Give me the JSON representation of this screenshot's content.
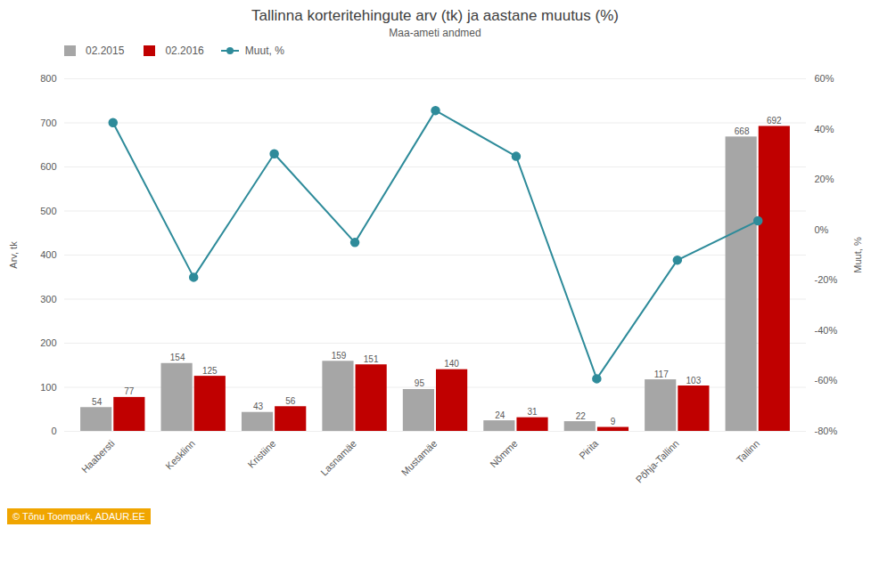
{
  "chart_data": {
    "type": "bar",
    "title": "Tallinna korteritehingute arv (tk) ja aastane muutus (%)",
    "subtitle": "Maa-ameti andmed",
    "ylabel": "Arv, tk",
    "y2label": "Muut, %",
    "categories": [
      "Haabersti",
      "Kesklinn",
      "Kristiine",
      "Lasnamäe",
      "Mustamäe",
      "Nõmme",
      "Pirita",
      "Põhja-Tallinn",
      "Tallinn"
    ],
    "series": [
      {
        "name": "02.2015",
        "type": "bar",
        "color": "#a6a6a6",
        "data_labels": true,
        "values": [
          54,
          154,
          43,
          159,
          95,
          24,
          22,
          117,
          668
        ]
      },
      {
        "name": "02.2016",
        "type": "bar",
        "color": "#c00000",
        "data_labels": true,
        "values": [
          77,
          125,
          56,
          151,
          140,
          31,
          9,
          103,
          692
        ]
      },
      {
        "name": "Muut, %",
        "type": "line",
        "axis": "y2",
        "color": "#2e8b9a",
        "marker": "circle",
        "values": [
          42.6,
          -18.8,
          30.2,
          -5.0,
          47.4,
          29.2,
          -59.1,
          -12.0,
          3.6
        ]
      }
    ],
    "ylim": [
      0,
      800
    ],
    "yticks": [
      0,
      100,
      200,
      300,
      400,
      500,
      600,
      700,
      800
    ],
    "y2lim": [
      -80,
      60
    ],
    "y2ticks": [
      {
        "value": -80,
        "label": "-80%"
      },
      {
        "value": -60,
        "label": "-60%"
      },
      {
        "value": -40,
        "label": "-40%"
      },
      {
        "value": -20,
        "label": "-20%"
      },
      {
        "value": 0,
        "label": "0%"
      },
      {
        "value": 20,
        "label": "20%"
      },
      {
        "value": 40,
        "label": "40%"
      },
      {
        "value": 60,
        "label": "60%"
      }
    ],
    "grid": true,
    "legend": "upper left",
    "annotations": [
      "© Tõnu Toompark, ADAUR.EE"
    ]
  }
}
